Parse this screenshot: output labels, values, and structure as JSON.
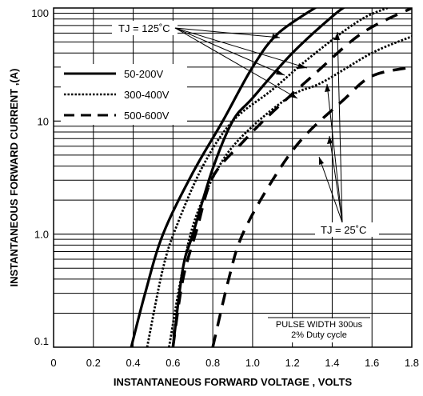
{
  "chart_data": {
    "type": "line",
    "xlabel": "INSTANTANEOUS FORWARD VOLTAGE , VOLTS",
    "ylabel": "INSTANTANEOUS  FORWARD CURRENT ,(A)",
    "xlim": [
      0,
      1.8
    ],
    "ylim": [
      0.1,
      100
    ],
    "y_scale": "log",
    "grid": true,
    "x_ticks": [
      "0",
      "0.2",
      "0.4",
      "0.6",
      "0.8",
      "1.0",
      "1.2",
      "1.4",
      "1.6",
      "1.8"
    ],
    "y_ticks": [
      {
        "value": 0.1,
        "label": "0.1"
      },
      {
        "value": 1,
        "label": "1.0"
      },
      {
        "value": 10,
        "label": "10"
      },
      {
        "value": 100,
        "label": "100"
      }
    ],
    "legend": {
      "placement": "top-left",
      "entries": [
        {
          "label": "50-200V",
          "style": "solid"
        },
        {
          "label": "300-400V",
          "style": "dotted"
        },
        {
          "label": "500-600V",
          "style": "dashed"
        }
      ]
    },
    "series": [
      {
        "range": "50-200V",
        "tj": "125",
        "style": "solid",
        "points": [
          [
            0.39,
            0.1
          ],
          [
            0.46,
            0.3
          ],
          [
            0.55,
            1
          ],
          [
            0.7,
            3.5
          ],
          [
            0.85,
            10
          ],
          [
            1.0,
            30
          ],
          [
            1.13,
            60
          ],
          [
            1.35,
            110
          ]
        ]
      },
      {
        "range": "50-200V",
        "tj": "25",
        "style": "solid",
        "points": [
          [
            0.6,
            0.1
          ],
          [
            0.65,
            0.5
          ],
          [
            0.7,
            1
          ],
          [
            0.8,
            3.8
          ],
          [
            0.9,
            10
          ],
          [
            1.0,
            16
          ],
          [
            1.2,
            40
          ],
          [
            1.42,
            90
          ],
          [
            1.5,
            110
          ]
        ]
      },
      {
        "range": "300-400V",
        "tj": "125",
        "style": "dotted",
        "points": [
          [
            0.47,
            0.1
          ],
          [
            0.55,
            0.5
          ],
          [
            0.62,
            1.2
          ],
          [
            0.75,
            4
          ],
          [
            0.9,
            10
          ],
          [
            1.1,
            19
          ],
          [
            1.3,
            38
          ],
          [
            1.55,
            80
          ],
          [
            1.75,
            110
          ]
        ]
      },
      {
        "range": "300-400V",
        "tj": "25",
        "style": "dotted",
        "points": [
          [
            0.58,
            0.1
          ],
          [
            0.65,
            0.5
          ],
          [
            0.72,
            1.5
          ],
          [
            0.85,
            4.5
          ],
          [
            1.0,
            9
          ],
          [
            1.2,
            17
          ],
          [
            1.35,
            22
          ],
          [
            1.6,
            40
          ],
          [
            1.8,
            56
          ]
        ]
      },
      {
        "range": "500-600V",
        "tj": "125",
        "style": "dashed",
        "points": [
          [
            0.6,
            0.1
          ],
          [
            0.65,
            0.4
          ],
          [
            0.72,
            1.1
          ],
          [
            0.8,
            3.2
          ],
          [
            0.95,
            6.5
          ],
          [
            1.1,
            12
          ],
          [
            1.3,
            25
          ],
          [
            1.55,
            60
          ],
          [
            1.8,
            100
          ]
        ]
      },
      {
        "range": "500-600V",
        "tj": "25",
        "style": "dashed",
        "points": [
          [
            0.8,
            0.1
          ],
          [
            0.88,
            0.4
          ],
          [
            0.95,
            1
          ],
          [
            1.1,
            3
          ],
          [
            1.25,
            7
          ],
          [
            1.45,
            15
          ],
          [
            1.6,
            25
          ],
          [
            1.8,
            30
          ]
        ]
      }
    ],
    "annotations": [
      {
        "text": "TJ = 125˚C"
      },
      {
        "text": "TJ = 25˚C"
      },
      {
        "text": "PULSE WIDTH 300us"
      },
      {
        "text": "2% Duty cycle"
      }
    ]
  }
}
